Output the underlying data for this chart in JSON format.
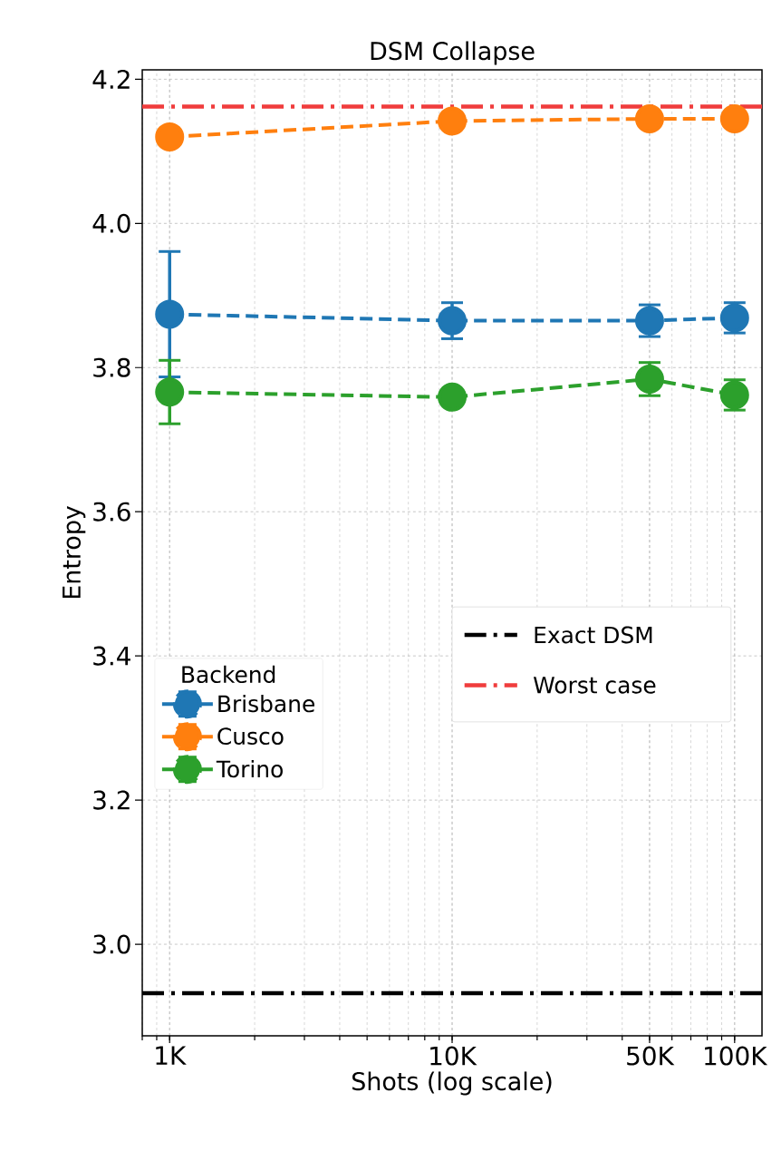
{
  "chart_data": {
    "type": "line",
    "title": "DSM Collapse",
    "xlabel": "Shots (log scale)",
    "ylabel": "Entropy",
    "legend_title": "Backend",
    "x": [
      1000,
      10000,
      50000,
      100000
    ],
    "series": [
      {
        "name": "Brisbane",
        "color": "#1f77b4",
        "values": [
          3.874,
          3.865,
          3.865,
          3.869
        ],
        "errors": [
          0.087,
          0.025,
          0.022,
          0.021
        ]
      },
      {
        "name": "Cusco",
        "color": "#ff7f0e",
        "values": [
          4.12,
          4.142,
          4.145,
          4.145
        ],
        "errors": [
          null,
          null,
          null,
          null
        ]
      },
      {
        "name": "Torino",
        "color": "#2ca02c",
        "values": [
          3.766,
          3.759,
          3.784,
          3.762
        ],
        "errors": [
          0.044,
          null,
          0.023,
          0.021
        ]
      }
    ],
    "ref_lines": [
      {
        "axis": "y",
        "value": 2.932,
        "label": "Exact DSM",
        "color": "#000000",
        "line_style": "dashdot"
      },
      {
        "axis": "y",
        "value": 4.162,
        "label": "Worst case",
        "color": "#f03c3c",
        "line_style": "dashdot"
      }
    ],
    "log": "x",
    "xlim": [
      800,
      125000
    ],
    "ylim": [
      2.873,
      4.213
    ],
    "xticks": [
      {
        "value": 1000,
        "label": "1K"
      },
      {
        "value": 10000,
        "label": "10K"
      },
      {
        "value": 50000,
        "label": "50K"
      },
      {
        "value": 100000,
        "label": "100K"
      }
    ],
    "yticks": [
      {
        "value": 3,
        "label": "3.0"
      },
      3.2,
      3.4,
      3.6,
      3.8,
      {
        "value": 4,
        "label": "4.0"
      },
      4.2
    ],
    "grid": true,
    "legend": "center left",
    "marker": "circle",
    "line_style": "dashed"
  }
}
